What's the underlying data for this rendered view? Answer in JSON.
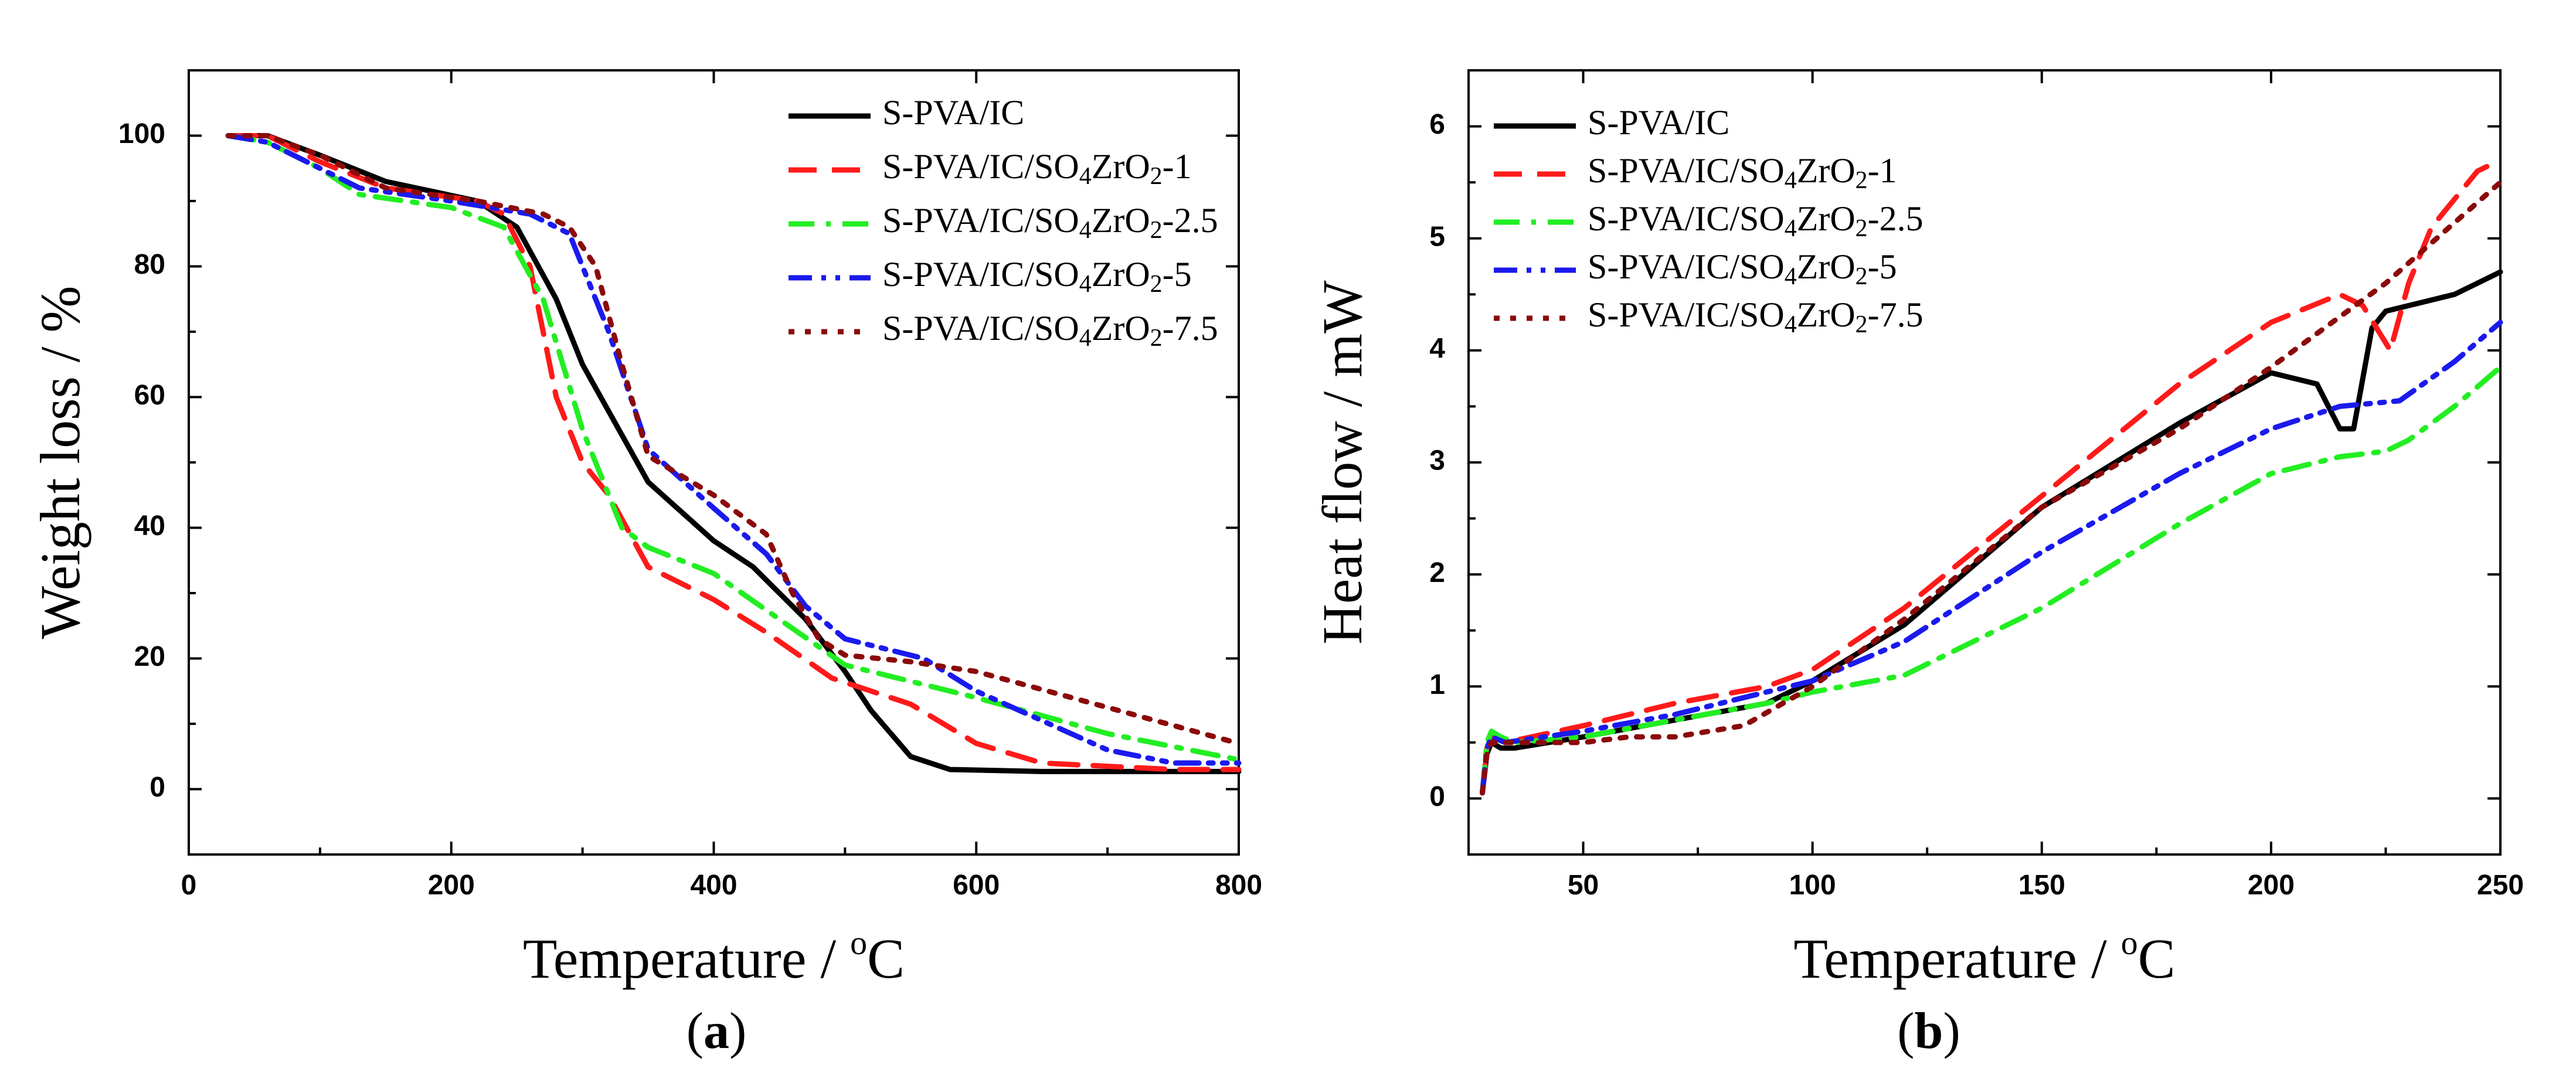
{
  "chart_data": [
    {
      "type": "line",
      "panel": "a",
      "xlabel": "Temperature / °C",
      "ylabel": "Weight loss / %",
      "xlim": [
        0,
        800
      ],
      "ylim": [
        -10,
        110
      ],
      "xticks": [
        0,
        200,
        400,
        600,
        800
      ],
      "yticks": [
        0,
        20,
        40,
        60,
        80,
        100
      ],
      "legend_position": "top-right",
      "series": [
        {
          "name": "S-PVA/IC",
          "color": "#000000",
          "dash": "solid",
          "x": [
            30,
            60,
            100,
            150,
            220,
            250,
            280,
            300,
            350,
            400,
            430,
            470,
            500,
            520,
            550,
            580,
            650,
            800
          ],
          "y": [
            100,
            100,
            97,
            93,
            90,
            86,
            75,
            65,
            47,
            38,
            34,
            26,
            18,
            12,
            5,
            3,
            2.7,
            2.7
          ]
        },
        {
          "name": "S-PVA/IC/SO4ZrO2-1",
          "color": "#ff1a1a",
          "dash": "dash",
          "x": [
            30,
            60,
            100,
            150,
            220,
            240,
            260,
            280,
            300,
            320,
            350,
            400,
            440,
            490,
            550,
            600,
            650,
            750,
            800
          ],
          "y": [
            100,
            100,
            96,
            92,
            90,
            88,
            80,
            60,
            50,
            45,
            34,
            29,
            24,
            17,
            13,
            7,
            4,
            3,
            3
          ]
        },
        {
          "name": "S-PVA/IC/SO4ZrO2-2.5",
          "color": "#22ee22",
          "dash": "dashdot",
          "x": [
            30,
            60,
            100,
            130,
            200,
            240,
            270,
            300,
            330,
            350,
            400,
            450,
            500,
            550,
            600,
            700,
            800
          ],
          "y": [
            100,
            99,
            95,
            91,
            89,
            86,
            75,
            55,
            40,
            37,
            33,
            26,
            19,
            16.5,
            14,
            8.5,
            4.5
          ]
        },
        {
          "name": "S-PVA/IC/SO4ZrO2-5",
          "color": "#1a1aee",
          "dash": "dashdotdot",
          "x": [
            30,
            60,
            100,
            130,
            200,
            260,
            290,
            320,
            350,
            400,
            440,
            470,
            500,
            560,
            600,
            700,
            750,
            800
          ],
          "y": [
            100,
            99,
            95,
            92,
            90,
            88,
            85,
            70,
            52,
            43,
            36,
            28,
            23,
            20,
            15,
            6,
            4,
            4
          ]
        },
        {
          "name": "S-PVA/IC/SO4ZrO2-7.5",
          "color": "#8b0a0a",
          "dash": "dot",
          "x": [
            30,
            60,
            100,
            150,
            220,
            270,
            290,
            310,
            330,
            350,
            400,
            440,
            460,
            480,
            500,
            550,
            600,
            700,
            800
          ],
          "y": [
            100,
            100,
            97,
            92,
            90,
            88,
            86,
            80,
            65,
            51,
            45,
            39,
            30,
            23,
            20.5,
            19.5,
            18,
            12.5,
            7
          ]
        }
      ]
    },
    {
      "type": "line",
      "panel": "b",
      "xlabel": "Temperature / °C",
      "ylabel": "Heat flow / mW",
      "xlim": [
        25,
        250
      ],
      "ylim": [
        -0.5,
        6.5
      ],
      "xticks": [
        50,
        100,
        150,
        200,
        250
      ],
      "yticks": [
        0,
        1,
        2,
        3,
        4,
        5,
        6
      ],
      "legend_position": "top-left",
      "series": [
        {
          "name": "S-PVA/IC",
          "color": "#000000",
          "dash": "solid",
          "x": [
            28,
            29,
            30,
            32,
            35,
            50,
            70,
            90,
            100,
            120,
            150,
            180,
            200,
            210,
            215,
            218,
            222,
            225,
            240,
            250
          ],
          "y": [
            0.05,
            0.4,
            0.5,
            0.45,
            0.45,
            0.55,
            0.7,
            0.85,
            1.05,
            1.55,
            2.6,
            3.35,
            3.8,
            3.7,
            3.3,
            3.3,
            4.2,
            4.35,
            4.5,
            4.7
          ]
        },
        {
          "name": "S-PVA/IC/SO4ZrO2-1",
          "color": "#ff1a1a",
          "dash": "dash",
          "x": [
            28,
            29,
            30,
            33,
            50,
            70,
            90,
            100,
            120,
            150,
            180,
            200,
            215,
            220,
            226,
            230,
            235,
            245,
            250
          ],
          "y": [
            0.05,
            0.45,
            0.55,
            0.5,
            0.65,
            0.85,
            1.0,
            1.15,
            1.7,
            2.7,
            3.7,
            4.25,
            4.5,
            4.4,
            4.0,
            4.6,
            5.1,
            5.6,
            5.7
          ]
        },
        {
          "name": "S-PVA/IC/SO4ZrO2-2.5",
          "color": "#22ee22",
          "dash": "dashdot",
          "x": [
            28,
            29,
            30,
            32,
            35,
            50,
            70,
            90,
            100,
            120,
            150,
            180,
            200,
            215,
            225,
            230,
            240,
            250
          ],
          "y": [
            0.05,
            0.5,
            0.6,
            0.55,
            0.5,
            0.55,
            0.7,
            0.85,
            0.95,
            1.1,
            1.7,
            2.45,
            2.9,
            3.05,
            3.1,
            3.2,
            3.5,
            3.85
          ]
        },
        {
          "name": "S-PVA/IC/SO4ZrO2-5",
          "color": "#1a1aee",
          "dash": "dashdotdot",
          "x": [
            28,
            29,
            30,
            33,
            50,
            70,
            90,
            100,
            120,
            150,
            180,
            200,
            215,
            228,
            240,
            250
          ],
          "y": [
            0.05,
            0.45,
            0.55,
            0.5,
            0.6,
            0.75,
            0.95,
            1.05,
            1.4,
            2.2,
            2.9,
            3.3,
            3.5,
            3.55,
            3.9,
            4.25
          ]
        },
        {
          "name": "S-PVA/IC/SO4ZrO2-7.5",
          "color": "#8b0a0a",
          "dash": "dot",
          "x": [
            28,
            29,
            30,
            33,
            50,
            60,
            70,
            85,
            100,
            120,
            150,
            180,
            200,
            225,
            250
          ],
          "y": [
            0.05,
            0.4,
            0.5,
            0.5,
            0.5,
            0.55,
            0.55,
            0.65,
            1.0,
            1.6,
            2.6,
            3.3,
            3.85,
            4.6,
            5.5
          ]
        }
      ]
    }
  ],
  "panel_labels": {
    "a": "(a)",
    "b": "(b)"
  }
}
